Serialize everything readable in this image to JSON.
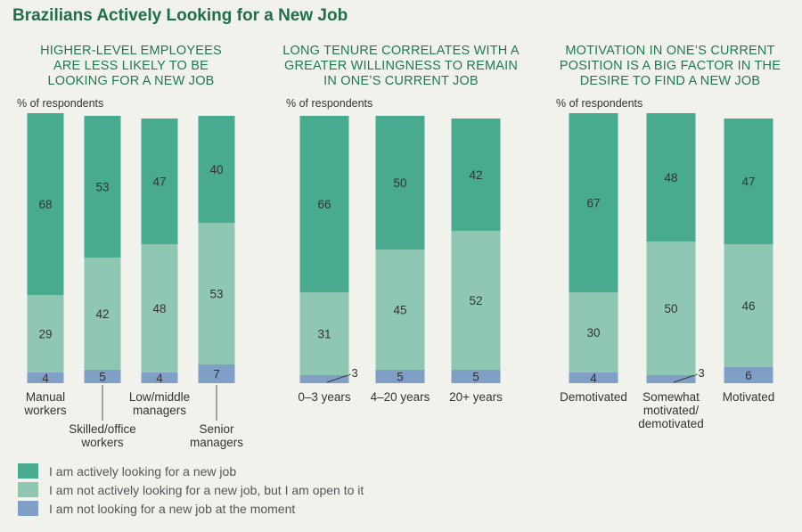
{
  "title": "Brazilians Actively Looking for a New Job",
  "colors": {
    "active": "#48ab8f",
    "open": "#8fc7b2",
    "not_looking": "#7f9fc6",
    "bar_text": "#333333",
    "grid_line": "#7a7a7a"
  },
  "chart_data": [
    {
      "type": "bar",
      "stacked": true,
      "title": "HIGHER-LEVEL EMPLOYEES ARE LESS LIKELY TO BE LOOKING FOR A NEW JOB",
      "title_lines": [
        "HIGHER-LEVEL EMPLOYEES",
        "ARE LESS LIKELY TO BE",
        "LOOKING FOR A NEW JOB"
      ],
      "ylabel": "% of respondents",
      "categories": [
        "Manual workers",
        "Skilled/office workers",
        "Low/middle managers",
        "Senior managers"
      ],
      "category_label_lines": [
        [
          "Manual",
          "workers"
        ],
        [
          "Skilled/office",
          "workers"
        ],
        [
          "Low/middle",
          "managers"
        ],
        [
          "Senior",
          "managers"
        ]
      ],
      "series": [
        {
          "name": "I am not looking for a new job at the moment",
          "values": [
            4,
            5,
            4,
            7
          ]
        },
        {
          "name": "I am not actively looking for a new job, but I am open to it",
          "values": [
            29,
            42,
            48,
            53
          ]
        },
        {
          "name": "I am actively looking for a new job",
          "values": [
            68,
            53,
            47,
            40
          ]
        }
      ],
      "ylim": [
        0,
        100
      ]
    },
    {
      "type": "bar",
      "stacked": true,
      "title": "LONG TENURE CORRELATES WITH A GREATER WILLINGNESS TO REMAIN IN ONE'S CURRENT JOB",
      "title_lines": [
        "LONG TENURE CORRELATES WITH A",
        "GREATER WILLINGNESS TO REMAIN",
        "IN ONE’S CURRENT JOB"
      ],
      "ylabel": "% of respondents",
      "categories": [
        "0–3 years",
        "4–20 years",
        "20+ years"
      ],
      "category_label_lines": [
        [
          "0–3 years"
        ],
        [
          "4–20 years"
        ],
        [
          "20+ years"
        ]
      ],
      "series": [
        {
          "name": "I am not looking for a new job at the moment",
          "values": [
            3,
            5,
            5
          ]
        },
        {
          "name": "I am not actively looking for a new job, but I am open to it",
          "values": [
            31,
            45,
            52
          ]
        },
        {
          "name": "I am actively looking for a new job",
          "values": [
            66,
            50,
            42
          ]
        }
      ],
      "ylim": [
        0,
        100
      ]
    },
    {
      "type": "bar",
      "stacked": true,
      "title": "MOTIVATION IN ONE'S CURRENT POSITION IS A BIG FACTOR IN THE DESIRE TO FIND A NEW JOB",
      "title_lines": [
        "MOTIVATION IN ONE’S CURRENT",
        "POSITION IS A BIG FACTOR IN THE",
        "DESIRE TO FIND A NEW JOB"
      ],
      "ylabel": "% of respondents",
      "categories": [
        "Demotivated",
        "Somewhat motivated/demotivated",
        "Motivated"
      ],
      "category_label_lines": [
        [
          "Demotivated"
        ],
        [
          "Somewhat",
          "motivated/",
          "demotivated"
        ],
        [
          "Motivated"
        ]
      ],
      "series": [
        {
          "name": "I am not looking for a new job at the moment",
          "values": [
            4,
            3,
            6
          ]
        },
        {
          "name": "I am not actively looking for a new job, but I am open to it",
          "values": [
            30,
            50,
            46
          ]
        },
        {
          "name": "I am actively looking for a new job",
          "values": [
            67,
            48,
            47
          ]
        }
      ],
      "ylim": [
        0,
        100
      ]
    }
  ],
  "legend": [
    {
      "label": "I am actively looking for a new job",
      "color": "#48ab8f"
    },
    {
      "label": "I am not actively looking for a new job, but I am open to it",
      "color": "#8fc7b2"
    },
    {
      "label": "I am not looking for a new job at the moment",
      "color": "#7f9fc6"
    }
  ]
}
